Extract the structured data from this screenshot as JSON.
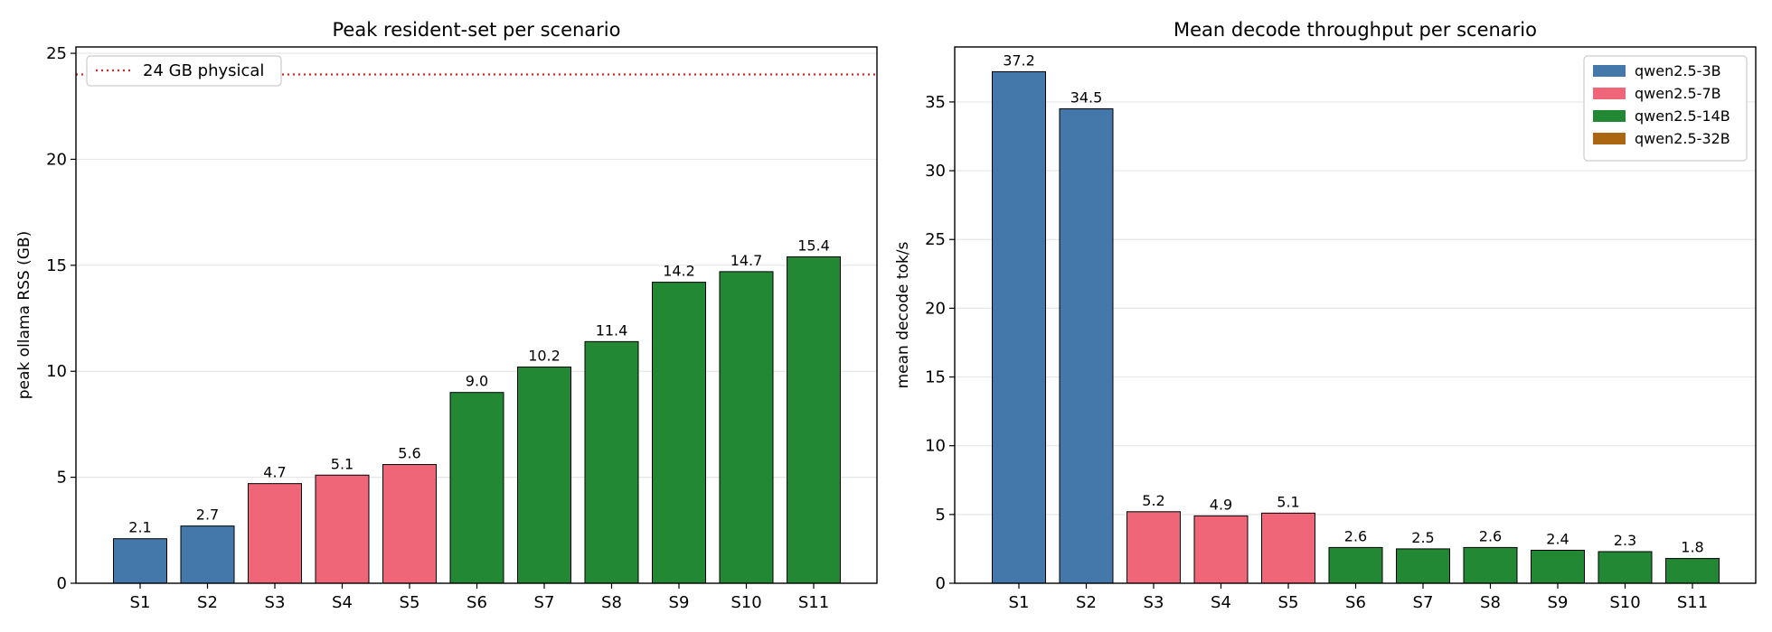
{
  "colors": {
    "qwen2.5-3B": "#4477aa",
    "qwen2.5-7B": "#ee6677",
    "qwen2.5-14B": "#228833",
    "qwen2.5-32B": "#aa6611",
    "threshold": "#d62728",
    "grid": "#e6e6e6"
  },
  "chart_data": [
    {
      "type": "bar",
      "title": "Peak resident-set per scenario",
      "xlabel": "",
      "ylabel": "peak ollama RSS (GB)",
      "categories": [
        "S1",
        "S2",
        "S3",
        "S4",
        "S5",
        "S6",
        "S7",
        "S8",
        "S9",
        "S10",
        "S11"
      ],
      "values": [
        2.1,
        2.7,
        4.7,
        5.1,
        5.6,
        9.0,
        10.2,
        11.4,
        14.2,
        14.7,
        15.4
      ],
      "value_labels": [
        "2.1",
        "2.7",
        "4.7",
        "5.1",
        "5.6",
        "9.0",
        "10.2",
        "11.4",
        "14.2",
        "14.7",
        "15.4"
      ],
      "series_of_bar": [
        "qwen2.5-3B",
        "qwen2.5-3B",
        "qwen2.5-7B",
        "qwen2.5-7B",
        "qwen2.5-7B",
        "qwen2.5-14B",
        "qwen2.5-14B",
        "qwen2.5-14B",
        "qwen2.5-14B",
        "qwen2.5-14B",
        "qwen2.5-14B"
      ],
      "ylim": [
        0,
        25.3
      ],
      "yticks": [
        0,
        5,
        10,
        15,
        20,
        25
      ],
      "grid": "horizontal",
      "reference_line": {
        "value": 24,
        "style": "dotted",
        "label": "24 GB physical"
      },
      "legend": {
        "position": "top-left",
        "entries": [
          "24 GB physical"
        ]
      }
    },
    {
      "type": "bar",
      "title": "Mean decode throughput per scenario",
      "xlabel": "",
      "ylabel": "mean decode tok/s",
      "categories": [
        "S1",
        "S2",
        "S3",
        "S4",
        "S5",
        "S6",
        "S7",
        "S8",
        "S9",
        "S10",
        "S11"
      ],
      "values": [
        37.2,
        34.5,
        5.2,
        4.9,
        5.1,
        2.6,
        2.5,
        2.6,
        2.4,
        2.3,
        1.8
      ],
      "value_labels": [
        "37.2",
        "34.5",
        "5.2",
        "4.9",
        "5.1",
        "2.6",
        "2.5",
        "2.6",
        "2.4",
        "2.3",
        "1.8"
      ],
      "series_of_bar": [
        "qwen2.5-3B",
        "qwen2.5-3B",
        "qwen2.5-7B",
        "qwen2.5-7B",
        "qwen2.5-7B",
        "qwen2.5-14B",
        "qwen2.5-14B",
        "qwen2.5-14B",
        "qwen2.5-14B",
        "qwen2.5-14B",
        "qwen2.5-14B"
      ],
      "ylim": [
        0,
        39
      ],
      "yticks": [
        0,
        5,
        10,
        15,
        20,
        25,
        30,
        35
      ],
      "grid": "horizontal",
      "legend": {
        "position": "top-right",
        "entries": [
          "qwen2.5-3B",
          "qwen2.5-7B",
          "qwen2.5-14B",
          "qwen2.5-32B"
        ]
      }
    }
  ]
}
